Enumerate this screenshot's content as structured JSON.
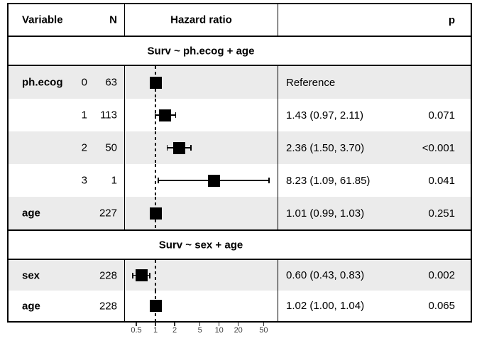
{
  "header": {
    "variable": "Variable",
    "n": "N",
    "hazard_ratio": "Hazard ratio",
    "p": "p"
  },
  "colors": {
    "row_shade": "#ebebeb",
    "border": "#000000",
    "marker": "#000000",
    "axis_text": "#404040"
  },
  "chart_data": {
    "type": "scatter",
    "subtype": "forest-plot",
    "title": "",
    "xlabel": "",
    "x_axis": {
      "scale": "log",
      "ticks": [
        "0.5",
        "1",
        "2",
        "5",
        "10",
        "20",
        "50"
      ],
      "range": [
        0.4,
        80
      ],
      "reference_line": 1
    },
    "columns": [
      "Variable",
      "N",
      "Hazard ratio",
      "p"
    ],
    "models": [
      {
        "title": "Surv ~ ph.ecog + age",
        "rows": [
          {
            "variable": "ph.ecog",
            "level": "0",
            "n": "63",
            "hr": 1.0,
            "ci_low": null,
            "ci_high": null,
            "estimate": "Reference",
            "p": "",
            "shaded": true
          },
          {
            "variable": "",
            "level": "1",
            "n": "113",
            "hr": 1.43,
            "ci_low": 0.97,
            "ci_high": 2.11,
            "estimate": "1.43 (0.97, 2.11)",
            "p": "0.071",
            "shaded": false
          },
          {
            "variable": "",
            "level": "2",
            "n": "50",
            "hr": 2.36,
            "ci_low": 1.5,
            "ci_high": 3.7,
            "estimate": "2.36 (1.50, 3.70)",
            "p": "<0.001",
            "shaded": true
          },
          {
            "variable": "",
            "level": "3",
            "n": "1",
            "hr": 8.23,
            "ci_low": 1.09,
            "ci_high": 61.85,
            "estimate": "8.23 (1.09, 61.85)",
            "p": "0.041",
            "shaded": false
          },
          {
            "variable": "age",
            "level": "",
            "n": "227",
            "hr": 1.01,
            "ci_low": 0.99,
            "ci_high": 1.03,
            "estimate": "1.01 (0.99, 1.03)",
            "p": "0.251",
            "shaded": true
          }
        ]
      },
      {
        "title": "Surv ~ sex + age",
        "rows": [
          {
            "variable": "sex",
            "level": "",
            "n": "228",
            "hr": 0.6,
            "ci_low": 0.43,
            "ci_high": 0.83,
            "estimate": "0.60 (0.43, 0.83)",
            "p": "0.002",
            "shaded": true
          },
          {
            "variable": "age",
            "level": "",
            "n": "228",
            "hr": 1.02,
            "ci_low": 1.0,
            "ci_high": 1.04,
            "estimate": "1.02 (1.00, 1.04)",
            "p": "0.065",
            "shaded": false
          }
        ]
      }
    ]
  }
}
